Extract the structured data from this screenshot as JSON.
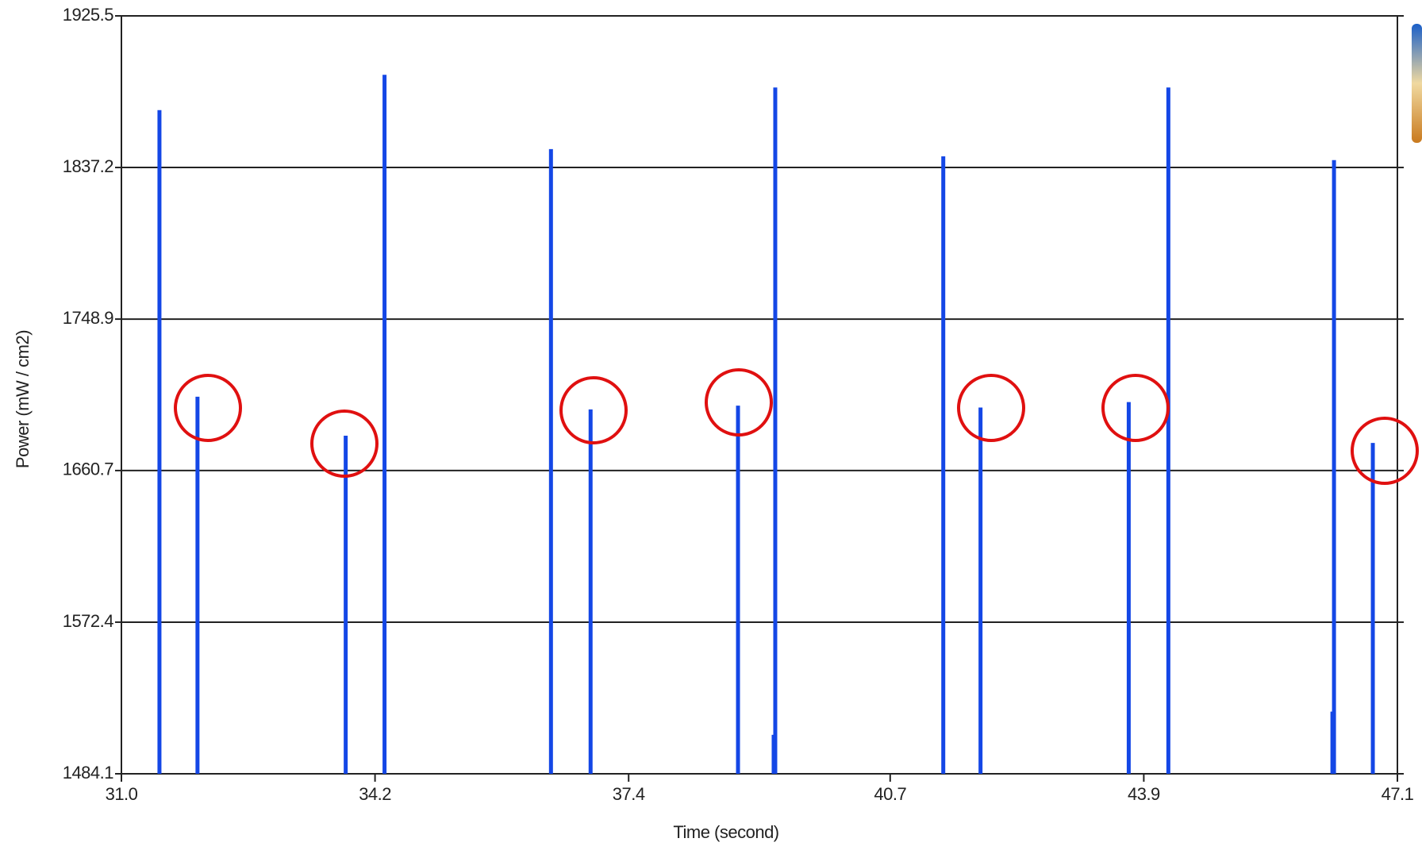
{
  "chart_data": {
    "type": "stem",
    "x_label": "Time (second)",
    "y_label": "Power (mW / cm2)",
    "x": [
      31.48,
      31.96,
      33.83,
      34.32,
      36.42,
      36.92,
      38.78,
      39.23,
      39.25,
      41.37,
      41.84,
      43.71,
      44.21,
      46.28,
      46.3,
      46.79
    ],
    "values": [
      1870.6,
      1703.7,
      1681.0,
      1891.2,
      1847.9,
      1696.3,
      1698.5,
      1506.8,
      1883.8,
      1843.7,
      1697.4,
      1700.6,
      1883.8,
      1520.3,
      1841.5,
      1676.8
    ],
    "color": "#1447e6",
    "xlim": [
      31.0,
      47.1
    ],
    "xticks": [
      {
        "value": 31.0,
        "label": "31.0"
      },
      34.2,
      37.4,
      40.7,
      43.9,
      47.1
    ],
    "ylim": [
      1484.1,
      1925.5
    ],
    "yticks": [
      1484.1,
      1572.4,
      1660.7,
      1748.9,
      1837.2,
      1925.5
    ],
    "grid": true
  }
}
